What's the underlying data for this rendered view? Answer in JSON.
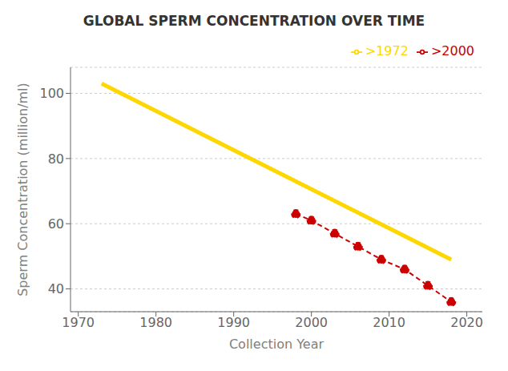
{
  "chart_data": {
    "type": "line",
    "title": "GLOBAL SPERM CONCENTRATION OVER TIME",
    "x_label": "Collection Year",
    "y_label": "Sperm Concentration (million/ml)",
    "xlim": [
      1969,
      2022
    ],
    "ylim": [
      33,
      108
    ],
    "xticks": [
      1970,
      1980,
      1990,
      2000,
      2010,
      2020
    ],
    "yticks": [
      40,
      60,
      80,
      100
    ],
    "grid": "y",
    "legend": "upper right",
    "series": [
      {
        "name": ">1972",
        "color": "#FFD700",
        "line_style": "solid",
        "x": [
          1973,
          2018
        ],
        "values": [
          103,
          49
        ]
      },
      {
        "name": ">2000",
        "color": "#CC0000",
        "line_style": "dashed",
        "marker": "o",
        "x": [
          1998,
          2000,
          2003,
          2006,
          2009,
          2012,
          2015,
          2018
        ],
        "values": [
          63,
          61,
          57,
          53,
          49,
          46,
          41,
          36
        ]
      }
    ]
  }
}
